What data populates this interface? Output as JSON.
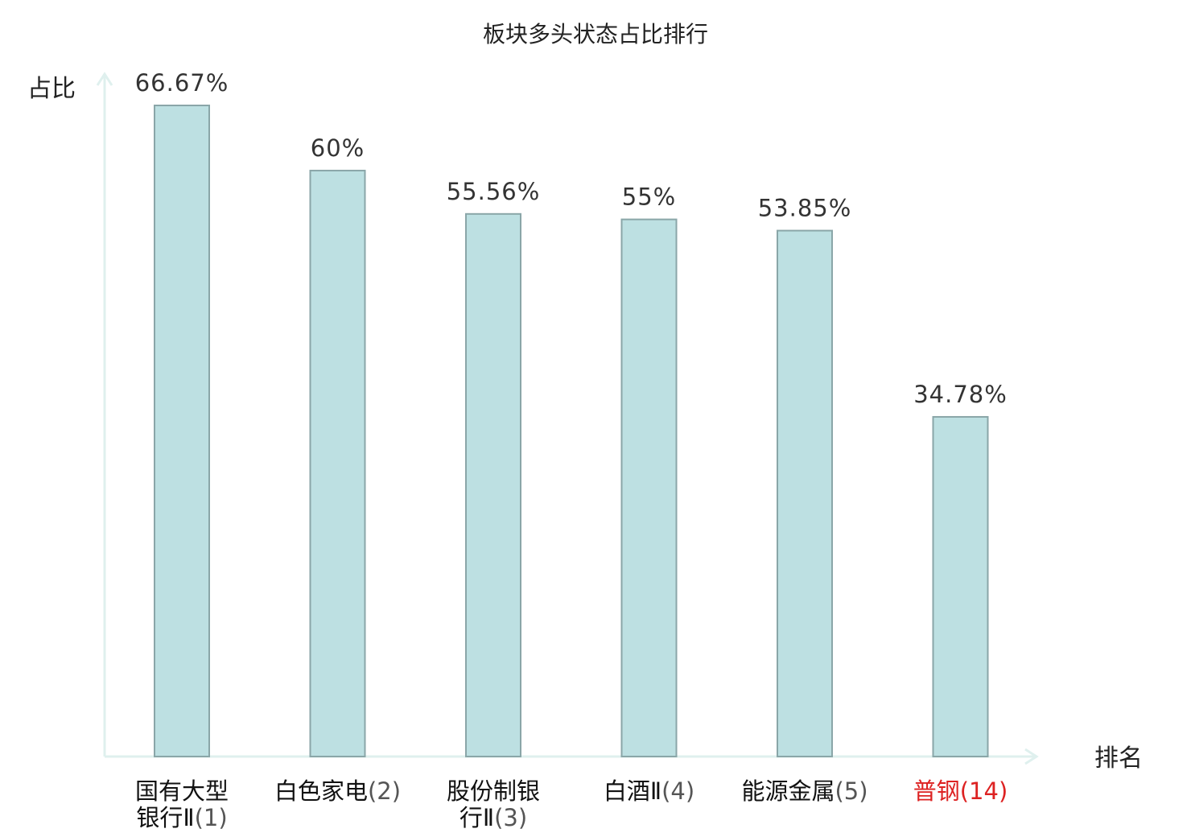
{
  "chart_data": {
    "type": "bar",
    "title": "板块多头状态占比排行",
    "ylabel": "占比",
    "xlabel": "排名",
    "ylim": [
      0,
      70
    ],
    "grid": false,
    "categories": [
      {
        "name_lines": [
          "国有大型",
          "银行Ⅱ"
        ],
        "rank": "(1)",
        "highlight": false
      },
      {
        "name_lines": [
          "白色家电"
        ],
        "rank": "(2)",
        "highlight": false
      },
      {
        "name_lines": [
          "股份制银",
          "行Ⅱ"
        ],
        "rank": "(3)",
        "highlight": false
      },
      {
        "name_lines": [
          "白酒Ⅱ"
        ],
        "rank": "(4)",
        "highlight": false
      },
      {
        "name_lines": [
          "能源金属"
        ],
        "rank": "(5)",
        "highlight": false
      },
      {
        "name_lines": [
          "普钢"
        ],
        "rank": "(14)",
        "highlight": true
      }
    ],
    "values": [
      66.67,
      60,
      55.56,
      55,
      53.85,
      34.78
    ],
    "value_labels": [
      "66.67%",
      "60%",
      "55.56%",
      "55%",
      "53.85%",
      "34.78%"
    ]
  },
  "colors": {
    "bar_fill": "#bde0e2",
    "bar_stroke": "#8aa6a8",
    "axis": "#dff0ee",
    "highlight": "#dd2222",
    "name_text": "#111111",
    "rank_text": "#555555"
  }
}
